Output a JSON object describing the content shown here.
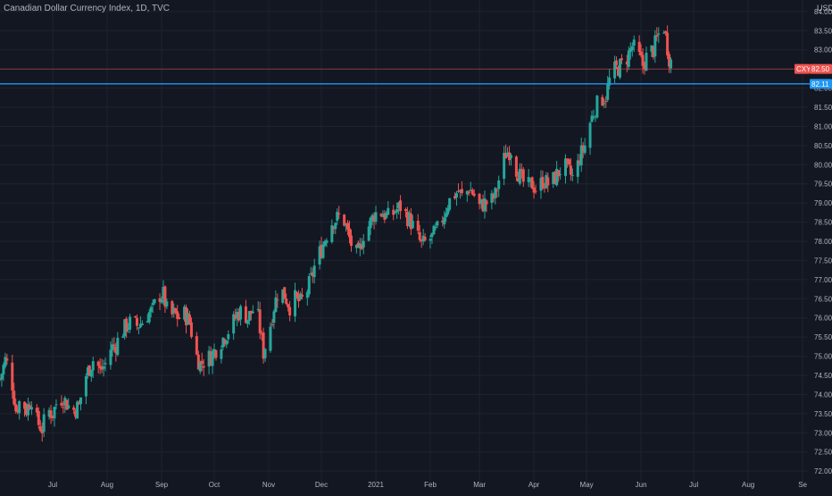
{
  "header": {
    "title": "Canadian Dollar Currency Index, 1D, TVC"
  },
  "axis": {
    "currency_label": "USD"
  },
  "badges": {
    "cxy_symbol": "CXY",
    "cxy_value": "82.50",
    "blue_value": "82.11"
  },
  "colors": {
    "background": "#131722",
    "grid": "#1f2330",
    "text": "#b2b5be",
    "up": "#26a69a",
    "down": "#ef5350",
    "price_line": "#ef5350",
    "horizontal_line": "#2196f3"
  },
  "chart_data": {
    "type": "candlestick",
    "title": "Canadian Dollar Currency Index, 1D, TVC",
    "ylabel": "USD",
    "ylim": [
      71.7,
      84.3
    ],
    "y_ticks": [
      "72.00",
      "72.50",
      "73.00",
      "73.50",
      "74.00",
      "74.50",
      "75.00",
      "75.50",
      "76.00",
      "76.50",
      "77.00",
      "77.50",
      "78.00",
      "78.50",
      "79.00",
      "79.50",
      "80.00",
      "80.50",
      "81.00",
      "81.50",
      "82.00",
      "82.50",
      "83.00",
      "83.50",
      "84.00"
    ],
    "x_ticks": [
      {
        "label": "Jul",
        "day": 30
      },
      {
        "label": "Aug",
        "day": 61
      },
      {
        "label": "Sep",
        "day": 92
      },
      {
        "label": "Oct",
        "day": 122
      },
      {
        "label": "Nov",
        "day": 153
      },
      {
        "label": "Dec",
        "day": 183
      },
      {
        "label": "2021",
        "day": 214
      },
      {
        "label": "Feb",
        "day": 245
      },
      {
        "label": "Mar",
        "day": 273
      },
      {
        "label": "Apr",
        "day": 304
      },
      {
        "label": "May",
        "day": 334
      },
      {
        "label": "Jun",
        "day": 365
      },
      {
        "label": "Jul",
        "day": 395
      },
      {
        "label": "Aug",
        "day": 426
      },
      {
        "label": "Se",
        "day": 457
      }
    ],
    "x_range_days": [
      0,
      460
    ],
    "current_price": 82.5,
    "horizontal_level": 82.11,
    "close_anchors": [
      [
        0,
        74.4
      ],
      [
        3,
        74.9
      ],
      [
        6,
        74.6
      ],
      [
        9,
        73.6
      ],
      [
        12,
        73.9
      ],
      [
        15,
        73.6
      ],
      [
        18,
        73.9
      ],
      [
        21,
        73.3
      ],
      [
        24,
        73.1
      ],
      [
        27,
        73.6
      ],
      [
        30,
        73.5
      ],
      [
        33,
        73.9
      ],
      [
        36,
        73.9
      ],
      [
        39,
        73.7
      ],
      [
        42,
        73.6
      ],
      [
        45,
        73.7
      ],
      [
        48,
        74.4
      ],
      [
        51,
        74.7
      ],
      [
        54,
        75.0
      ],
      [
        57,
        74.6
      ],
      [
        60,
        74.8
      ],
      [
        63,
        75.2
      ],
      [
        66,
        75.3
      ],
      [
        69,
        75.6
      ],
      [
        72,
        75.8
      ],
      [
        75,
        75.9
      ],
      [
        78,
        75.8
      ],
      [
        81,
        75.9
      ],
      [
        84,
        76.1
      ],
      [
        87,
        76.2
      ],
      [
        90,
        76.6
      ],
      [
        93,
        76.6
      ],
      [
        96,
        76.0
      ],
      [
        99,
        76.1
      ],
      [
        102,
        76.0
      ],
      [
        105,
        76.1
      ],
      [
        108,
        75.9
      ],
      [
        111,
        75.1
      ],
      [
        114,
        74.8
      ],
      [
        117,
        74.9
      ],
      [
        120,
        75.0
      ],
      [
        123,
        75.2
      ],
      [
        126,
        75.4
      ],
      [
        129,
        75.6
      ],
      [
        132,
        75.8
      ],
      [
        135,
        76.1
      ],
      [
        138,
        76.2
      ],
      [
        141,
        76.0
      ],
      [
        144,
        76.2
      ],
      [
        147,
        76.0
      ],
      [
        150,
        75.1
      ],
      [
        153,
        75.6
      ],
      [
        156,
        76.3
      ],
      [
        159,
        76.8
      ],
      [
        162,
        76.6
      ],
      [
        165,
        76.3
      ],
      [
        168,
        76.5
      ],
      [
        171,
        76.4
      ],
      [
        174,
        76.6
      ],
      [
        177,
        77.0
      ],
      [
        180,
        77.5
      ],
      [
        183,
        77.8
      ],
      [
        186,
        78.2
      ],
      [
        189,
        78.5
      ],
      [
        192,
        78.6
      ],
      [
        195,
        78.7
      ],
      [
        198,
        78.2
      ],
      [
        201,
        77.8
      ],
      [
        204,
        77.6
      ],
      [
        207,
        78.2
      ],
      [
        210,
        78.4
      ],
      [
        213,
        78.7
      ],
      [
        216,
        78.8
      ],
      [
        219,
        78.7
      ],
      [
        222,
        78.6
      ],
      [
        225,
        78.8
      ],
      [
        228,
        78.9
      ],
      [
        231,
        78.7
      ],
      [
        234,
        78.5
      ],
      [
        237,
        78.2
      ],
      [
        240,
        77.9
      ],
      [
        243,
        78.0
      ],
      [
        246,
        78.1
      ],
      [
        249,
        78.3
      ],
      [
        252,
        78.6
      ],
      [
        255,
        79.0
      ],
      [
        258,
        79.2
      ],
      [
        261,
        79.3
      ],
      [
        264,
        79.1
      ],
      [
        267,
        79.4
      ],
      [
        270,
        79.2
      ],
      [
        273,
        78.9
      ],
      [
        276,
        79.0
      ],
      [
        279,
        79.0
      ],
      [
        282,
        79.2
      ],
      [
        285,
        79.8
      ],
      [
        288,
        80.3
      ],
      [
        291,
        80.4
      ],
      [
        294,
        79.9
      ],
      [
        297,
        79.6
      ],
      [
        300,
        79.4
      ],
      [
        303,
        79.5
      ],
      [
        306,
        79.3
      ],
      [
        309,
        79.6
      ],
      [
        312,
        79.5
      ],
      [
        315,
        79.6
      ],
      [
        318,
        79.8
      ],
      [
        321,
        80.0
      ],
      [
        324,
        79.8
      ],
      [
        327,
        79.6
      ],
      [
        330,
        80.2
      ],
      [
        333,
        80.5
      ],
      [
        336,
        81.1
      ],
      [
        339,
        81.5
      ],
      [
        342,
        81.7
      ],
      [
        345,
        81.8
      ],
      [
        348,
        82.4
      ],
      [
        351,
        82.5
      ],
      [
        354,
        82.6
      ],
      [
        357,
        82.8
      ],
      [
        360,
        83.1
      ],
      [
        363,
        82.9
      ],
      [
        366,
        82.6
      ],
      [
        369,
        82.9
      ],
      [
        372,
        83.0
      ],
      [
        375,
        83.4
      ],
      [
        378,
        83.6
      ],
      [
        381,
        82.8
      ],
      [
        384,
        82.5
      ]
    ]
  }
}
